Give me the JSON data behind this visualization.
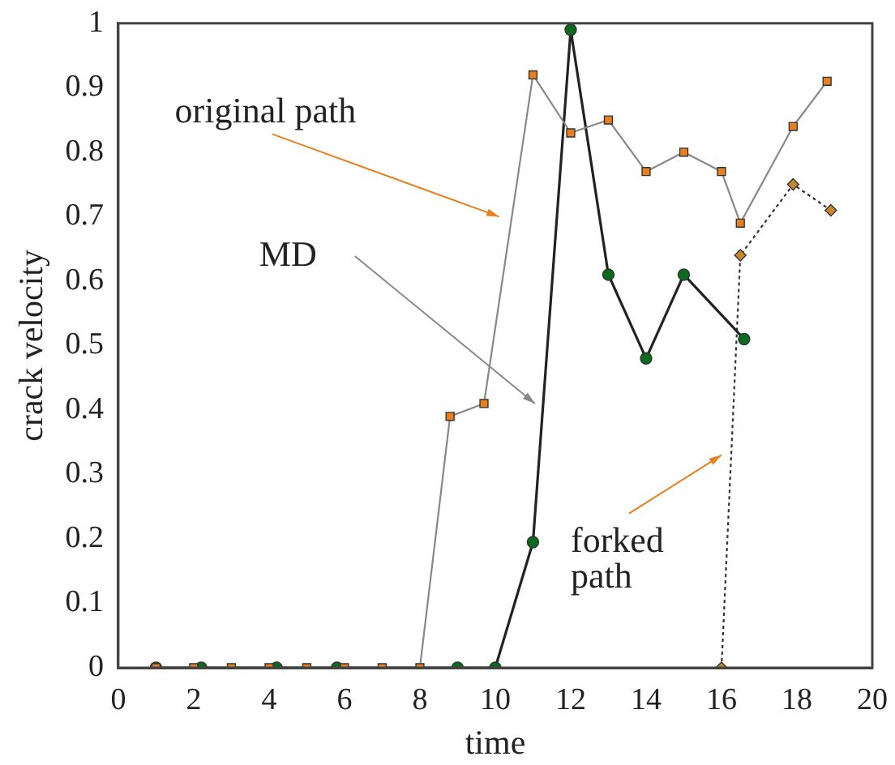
{
  "chart_data": {
    "type": "line",
    "xlabel": "time",
    "ylabel": "crack velocity",
    "xlim": [
      0,
      20
    ],
    "xticks": [
      0,
      2,
      4,
      6,
      8,
      10,
      12,
      14,
      16,
      18,
      20
    ],
    "ylim": [
      0,
      1
    ],
    "yticks": [
      0,
      0.1,
      0.2,
      0.3,
      0.4,
      0.5,
      0.6,
      0.7,
      0.8,
      0.9,
      1
    ],
    "grid": false,
    "legend": false,
    "series": [
      {
        "color": "#e8801e",
        "marker": "square",
        "line_style": "solid",
        "x": [
          1,
          2,
          3,
          4,
          5,
          6,
          7,
          8,
          8.8,
          9.7,
          11,
          12,
          13,
          14,
          15,
          16,
          16.5,
          17.9,
          18.8
        ],
        "values": [
          0,
          0,
          0,
          0,
          0,
          0,
          0,
          0,
          0.39,
          0.41,
          0.92,
          0.83,
          0.85,
          0.77,
          0.8,
          0.77,
          0.69,
          0.84,
          0.91
        ]
      },
      {
        "color": "#0b6b1c",
        "marker": "circle",
        "line_style": "solid",
        "x": [
          1,
          2.2,
          4.2,
          5.8,
          9,
          10,
          11,
          12,
          13,
          14,
          15,
          16.6
        ],
        "values": [
          0,
          0,
          0,
          0,
          0,
          0,
          0.195,
          0.99,
          0.61,
          0.48,
          0.61,
          0.51
        ]
      },
      {
        "color": "#c8862a",
        "marker": "diamond",
        "line_style": "dotted",
        "x": [
          16,
          16.5,
          17.9,
          18.9
        ],
        "values": [
          0,
          0.64,
          0.75,
          0.71
        ]
      }
    ],
    "annotations": [
      "original path",
      "MD",
      "forked path"
    ]
  }
}
